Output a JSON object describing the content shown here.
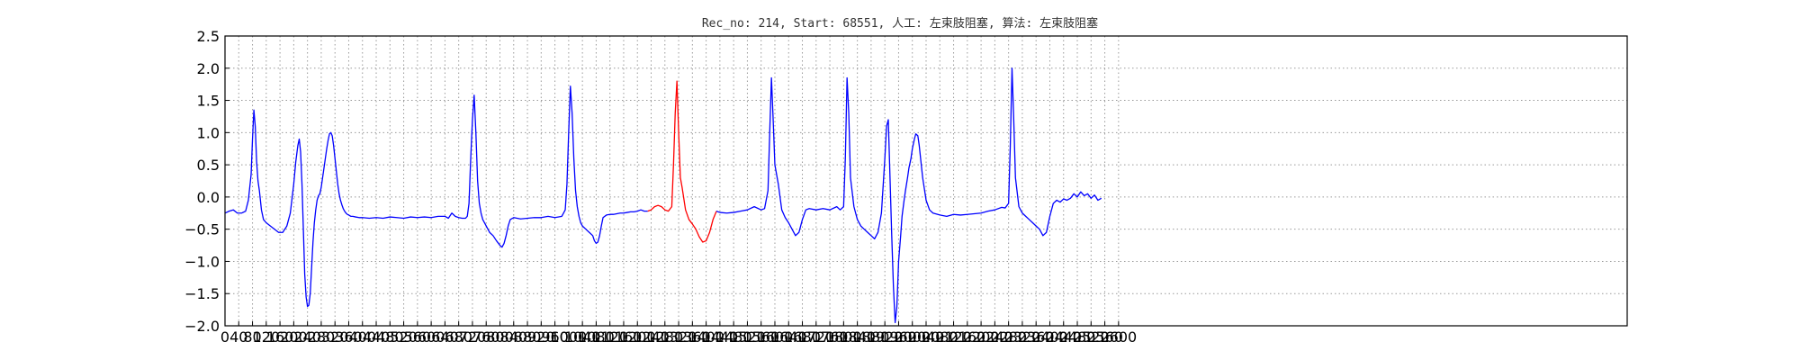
{
  "title": "Rec_no: 214, Start: 68551, 人工: 左束肢阻塞, 算法: 左束肢阻塞",
  "colors": {
    "background": "#ffffff",
    "signal": "#0000ff",
    "highlight": "#ff0000",
    "grid": "#999999",
    "axes": "#000000"
  },
  "chart_data": {
    "type": "line",
    "title": "Rec_no: 214, Start: 68551, 人工: 左束肢阻塞, 算法: 左束肢阻塞",
    "xlabel": "",
    "ylabel": "",
    "xlim": [
      0,
      4080
    ],
    "ylim": [
      -2.0,
      2.5
    ],
    "grid": true,
    "yticks": [
      -2.0,
      -1.5,
      -1.0,
      -0.5,
      0.0,
      0.5,
      1.0,
      1.5,
      2.0,
      2.5
    ],
    "ytick_labels": [
      "−2.0",
      "−1.5",
      "−1.0",
      "−0.5",
      "0.0",
      "0.5",
      "1.0",
      "1.5",
      "2.0",
      "2.5"
    ],
    "xticks": [
      0,
      40,
      80,
      120,
      160,
      200,
      240,
      280,
      320,
      360,
      400,
      440,
      480,
      520,
      560,
      600,
      640,
      680,
      720,
      760,
      800,
      840,
      880,
      920,
      960,
      1000,
      1040,
      1080,
      1120,
      1160,
      1200,
      1240,
      1280,
      1320,
      1360,
      1400,
      1440,
      1480,
      1520,
      1560,
      1600,
      1640,
      1680,
      1720,
      1760,
      1800,
      1840,
      1880,
      1920,
      1960,
      2000,
      2040,
      2080,
      2120,
      2160,
      2200,
      2240,
      2280,
      2320,
      2360,
      2400,
      2440,
      2480,
      2520,
      2560,
      2600
    ],
    "xtick_labels": [
      "0",
      "40",
      "80",
      "120",
      "160",
      "200",
      "240",
      "280",
      "320",
      "360",
      "400",
      "440",
      "480",
      "520",
      "560",
      "600",
      "640",
      "680",
      "720",
      "760",
      "800",
      "840",
      "880",
      "920",
      "960",
      "1000",
      "1040",
      "1080",
      "1120",
      "1160",
      "1200",
      "1240",
      "1280",
      "1320",
      "1360",
      "1400",
      "1440",
      "1480",
      "1520",
      "1560",
      "1600",
      "1640",
      "1680",
      "1720",
      "1760",
      "1800",
      "1840",
      "1880",
      "1920",
      "1960",
      "2000",
      "2040",
      "2080",
      "2120",
      "2160",
      "2200",
      "2240",
      "2280",
      "2320",
      "2360",
      "2400",
      "2440",
      "2480",
      "2520",
      "2560",
      "2600"
    ],
    "series": [
      {
        "color": "#0000ff",
        "x": [
          0,
          12,
          24,
          36,
          48,
          60,
          68,
          76,
          80,
          84,
          88,
          92,
          96,
          100,
          106,
          112,
          120,
          132,
          144,
          156,
          168,
          180,
          190,
          200,
          206,
          212,
          216,
          220,
          224,
          228,
          232,
          236,
          240,
          244,
          248,
          252,
          256,
          260,
          264,
          268,
          272,
          276,
          280,
          284,
          288,
          292,
          296,
          300,
          304,
          308,
          312,
          316,
          320,
          324,
          328,
          332,
          336,
          340,
          344,
          348,
          352,
          356,
          360,
          366,
          372,
          380,
          390,
          400,
          420,
          440,
          460,
          480,
          500,
          520,
          540,
          560,
          580,
          600,
          620,
          640,
          650,
          660,
          670,
          680,
          690,
          700,
          705,
          710,
          715,
          720,
          725,
          730,
          735,
          740,
          745,
          750,
          760,
          770,
          780,
          790,
          800,
          806,
          812,
          818,
          824,
          830,
          840,
          860,
          880,
          900,
          920,
          940,
          960,
          980,
          985,
          990,
          995,
          1000,
          1005,
          1010,
          1015,
          1020,
          1025,
          1030,
          1035,
          1040,
          1050,
          1060,
          1070,
          1075,
          1080,
          1085,
          1090,
          1095,
          1100,
          1110,
          1120,
          1130,
          1140,
          1150,
          1160,
          1170,
          1180,
          1190,
          1200,
          1210,
          1220,
          1230
        ],
        "y": [
          -0.25,
          -0.22,
          -0.2,
          -0.25,
          -0.25,
          -0.22,
          -0.05,
          0.35,
          0.9,
          1.35,
          1.1,
          0.55,
          0.25,
          0.1,
          -0.2,
          -0.35,
          -0.4,
          -0.45,
          -0.5,
          -0.55,
          -0.55,
          -0.45,
          -0.25,
          0.2,
          0.55,
          0.8,
          0.9,
          0.7,
          0.2,
          -0.5,
          -1.2,
          -1.55,
          -1.7,
          -1.68,
          -1.5,
          -1.1,
          -0.7,
          -0.4,
          -0.2,
          -0.05,
          0.02,
          0.05,
          0.15,
          0.3,
          0.45,
          0.6,
          0.75,
          0.88,
          0.98,
          1.0,
          0.95,
          0.8,
          0.6,
          0.4,
          0.2,
          0.05,
          -0.05,
          -0.12,
          -0.18,
          -0.22,
          -0.25,
          -0.27,
          -0.28,
          -0.3,
          -0.3,
          -0.31,
          -0.32,
          -0.32,
          -0.33,
          -0.32,
          -0.33,
          -0.31,
          -0.32,
          -0.33,
          -0.31,
          -0.32,
          -0.31,
          -0.32,
          -0.3,
          -0.3,
          -0.33,
          -0.25,
          -0.3,
          -0.32,
          -0.33,
          -0.33,
          -0.3,
          -0.1,
          0.6,
          1.2,
          1.58,
          1.0,
          0.25,
          -0.1,
          -0.25,
          -0.35,
          -0.45,
          -0.55,
          -0.6,
          -0.68,
          -0.75,
          -0.78,
          -0.72,
          -0.6,
          -0.45,
          -0.35,
          -0.32,
          -0.34,
          -0.33,
          -0.32,
          -0.32,
          -0.3,
          -0.32,
          -0.3,
          -0.25,
          -0.2,
          0.2,
          1.0,
          1.72,
          1.3,
          0.6,
          0.1,
          -0.15,
          -0.3,
          -0.4,
          -0.45,
          -0.5,
          -0.55,
          -0.6,
          -0.68,
          -0.72,
          -0.7,
          -0.6,
          -0.45,
          -0.32,
          -0.28,
          -0.27,
          -0.27,
          -0.26,
          -0.25,
          -0.25,
          -0.24,
          -0.23,
          -0.23,
          -0.22,
          -0.2,
          -0.22,
          -0.22
        ]
      },
      {
        "color": "#ff0000",
        "x": [
          1230,
          1240,
          1250,
          1260,
          1270,
          1280,
          1290,
          1300,
          1305,
          1310,
          1315,
          1320,
          1325,
          1330,
          1340,
          1350,
          1360,
          1370,
          1380,
          1390,
          1400,
          1410,
          1420,
          1430
        ],
        "y": [
          -0.22,
          -0.2,
          -0.15,
          -0.13,
          -0.15,
          -0.2,
          -0.22,
          -0.15,
          0.5,
          1.3,
          1.8,
          1.0,
          0.3,
          0.15,
          -0.2,
          -0.35,
          -0.42,
          -0.5,
          -0.62,
          -0.7,
          -0.68,
          -0.55,
          -0.35,
          -0.22
        ]
      },
      {
        "color": "#0000ff",
        "x": [
          1430,
          1440,
          1460,
          1480,
          1500,
          1520,
          1540,
          1560,
          1570,
          1580,
          1585,
          1590,
          1595,
          1600,
          1610,
          1620,
          1630,
          1640,
          1650,
          1660,
          1670,
          1680,
          1690,
          1700,
          1720,
          1740,
          1760,
          1780,
          1790,
          1800,
          1805,
          1810,
          1815,
          1820,
          1830,
          1840,
          1850,
          1860,
          1870,
          1880,
          1890,
          1900,
          1910,
          1920,
          1925,
          1930,
          1935,
          1940,
          1945,
          1950,
          1955,
          1960,
          1966,
          1970,
          1976,
          1980,
          1986,
          1990,
          1996,
          2000,
          2006,
          2010,
          2016,
          2020,
          2030,
          2040,
          2050,
          2060,
          2080,
          2100,
          2120,
          2140,
          2160,
          2180,
          2200,
          2220,
          2240,
          2260,
          2270,
          2280,
          2285,
          2290,
          2295,
          2300,
          2310,
          2320,
          2330,
          2340,
          2350,
          2360,
          2370,
          2380,
          2390,
          2400,
          2410,
          2420,
          2430,
          2440,
          2450,
          2460,
          2470,
          2480,
          2490,
          2500,
          2510,
          2520,
          2530,
          2540,
          2550
        ],
        "y": [
          -0.22,
          -0.24,
          -0.25,
          -0.24,
          -0.22,
          -0.2,
          -0.15,
          -0.2,
          -0.18,
          0.1,
          1.0,
          1.85,
          1.2,
          0.5,
          0.2,
          -0.2,
          -0.32,
          -0.4,
          -0.5,
          -0.6,
          -0.55,
          -0.35,
          -0.2,
          -0.18,
          -0.2,
          -0.18,
          -0.2,
          -0.15,
          -0.2,
          -0.15,
          0.6,
          1.85,
          1.3,
          0.3,
          -0.15,
          -0.35,
          -0.45,
          -0.5,
          -0.55,
          -0.6,
          -0.65,
          -0.55,
          -0.25,
          0.6,
          1.1,
          1.2,
          0.3,
          -0.6,
          -1.4,
          -1.95,
          -1.7,
          -1.0,
          -0.6,
          -0.3,
          -0.05,
          0.1,
          0.3,
          0.45,
          0.6,
          0.75,
          0.9,
          0.98,
          0.95,
          0.8,
          0.3,
          -0.05,
          -0.2,
          -0.25,
          -0.28,
          -0.3,
          -0.27,
          -0.28,
          -0.27,
          -0.26,
          -0.25,
          -0.22,
          -0.2,
          -0.16,
          -0.17,
          -0.1,
          0.8,
          2.0,
          1.2,
          0.3,
          -0.15,
          -0.25,
          -0.3,
          -0.35,
          -0.4,
          -0.45,
          -0.5,
          -0.6,
          -0.55,
          -0.3,
          -0.1,
          -0.05,
          -0.08,
          -0.03,
          -0.05,
          -0.02,
          0.05,
          0.0,
          0.08,
          0.02,
          0.05,
          -0.02,
          0.03,
          -0.05,
          -0.02
        ]
      }
    ]
  }
}
